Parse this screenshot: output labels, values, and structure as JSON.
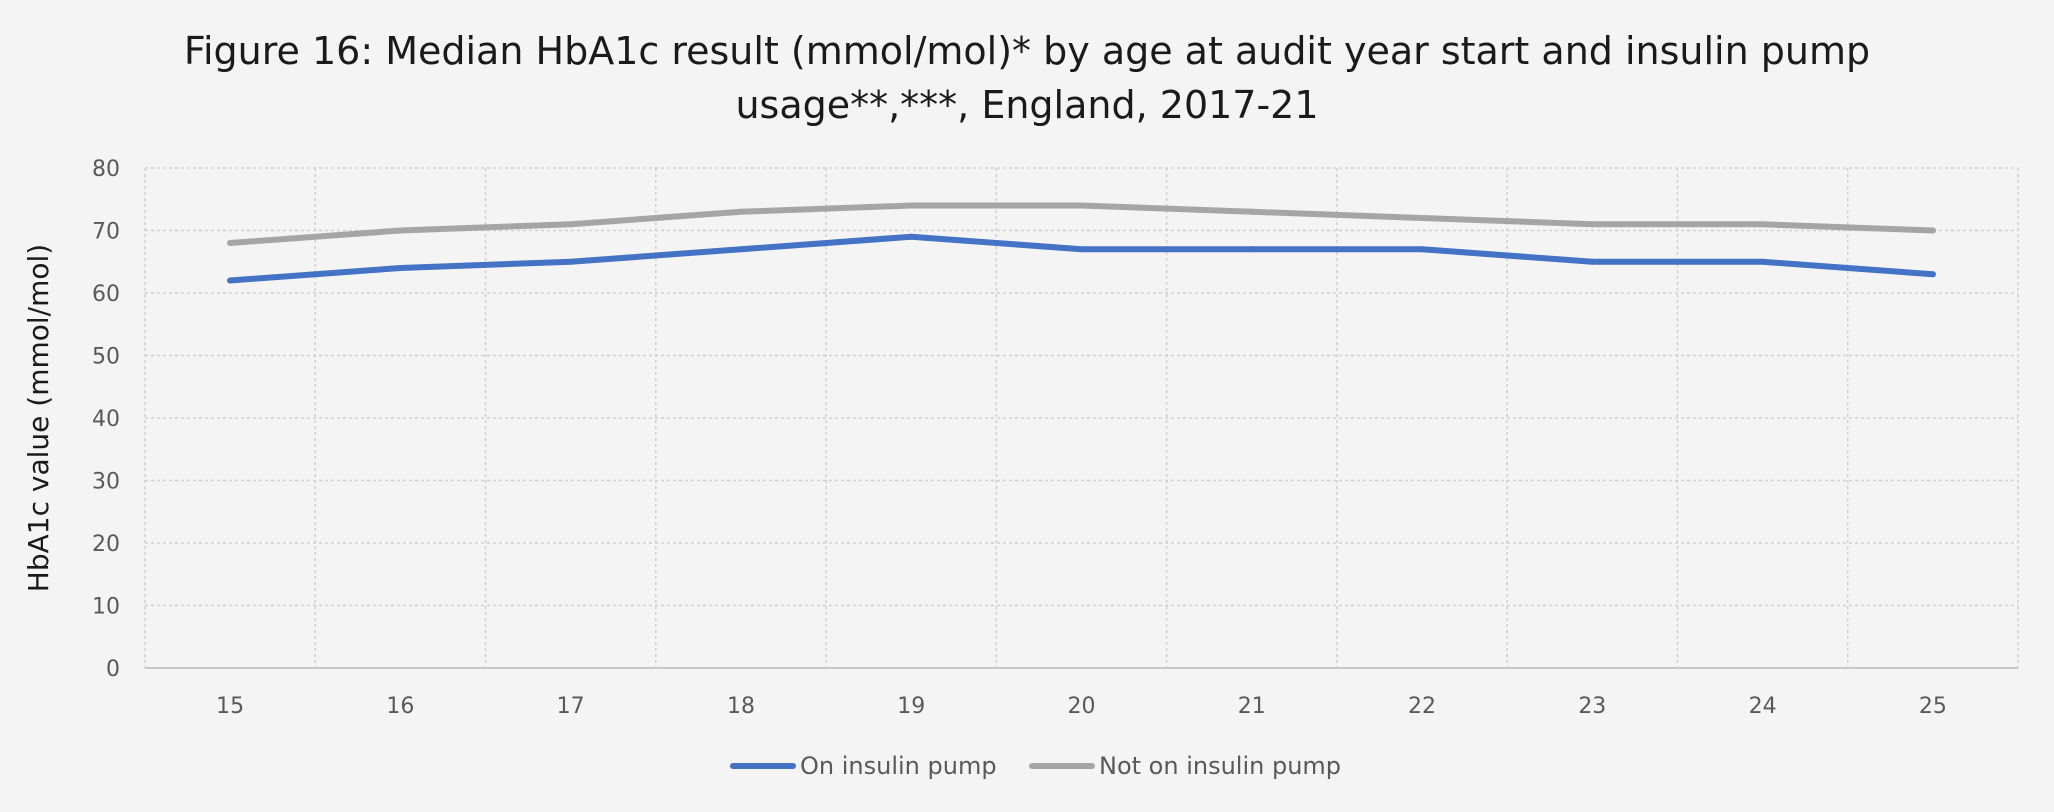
{
  "chart_data": {
    "type": "line",
    "title_lines": [
      "Figure 16: Median HbA1c result (mmol/mol)* by age at audit year start and insulin pump",
      "usage**,***, England, 2017-21"
    ],
    "xlabel": "",
    "ylabel": "HbA1c value (mmol/mol)",
    "x": [
      15,
      16,
      17,
      18,
      19,
      20,
      21,
      22,
      23,
      24,
      25
    ],
    "ylim": [
      0,
      80
    ],
    "yticks": [
      0,
      10,
      20,
      30,
      40,
      50,
      60,
      70,
      80
    ],
    "grid": true,
    "legend_position": "bottom",
    "series": [
      {
        "name": "On insulin pump",
        "color": "#4472c4",
        "values": [
          62,
          64,
          65,
          67,
          69,
          67,
          67,
          67,
          65,
          65,
          63
        ]
      },
      {
        "name": "Not on insulin pump",
        "color": "#a5a5a5",
        "values": [
          68,
          70,
          71,
          73,
          74,
          74,
          73,
          72,
          71,
          71,
          70
        ]
      }
    ]
  }
}
